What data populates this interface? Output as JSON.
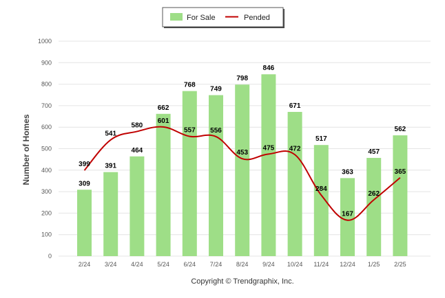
{
  "colors": {
    "bar": "#9ede87",
    "line": "#c00000",
    "grid": "#e4e4e4"
  },
  "legend": {
    "for_sale": "For Sale",
    "pended": "Pended"
  },
  "footer": {
    "copyright": "Copyright © Trendgraphix, Inc."
  },
  "chart_data": {
    "type": "bar",
    "categories": [
      "2/24",
      "3/24",
      "4/24",
      "5/24",
      "6/24",
      "7/24",
      "8/24",
      "9/24",
      "10/24",
      "11/24",
      "12/24",
      "1/25",
      "2/25"
    ],
    "series": [
      {
        "name": "For Sale",
        "type": "bar",
        "values": [
          309,
          391,
          464,
          662,
          768,
          749,
          798,
          846,
          671,
          517,
          363,
          457,
          562
        ]
      },
      {
        "name": "Pended",
        "type": "line",
        "values": [
          399,
          541,
          580,
          601,
          557,
          556,
          453,
          475,
          472,
          284,
          167,
          262,
          365
        ]
      }
    ],
    "title": "",
    "xlabel": "",
    "ylabel": "Number of Homes",
    "ylim": [
      0,
      1000
    ],
    "yticks": [
      0,
      100,
      200,
      300,
      400,
      500,
      600,
      700,
      800,
      900,
      1000
    ],
    "grid": true,
    "legend_position": "top-center"
  }
}
